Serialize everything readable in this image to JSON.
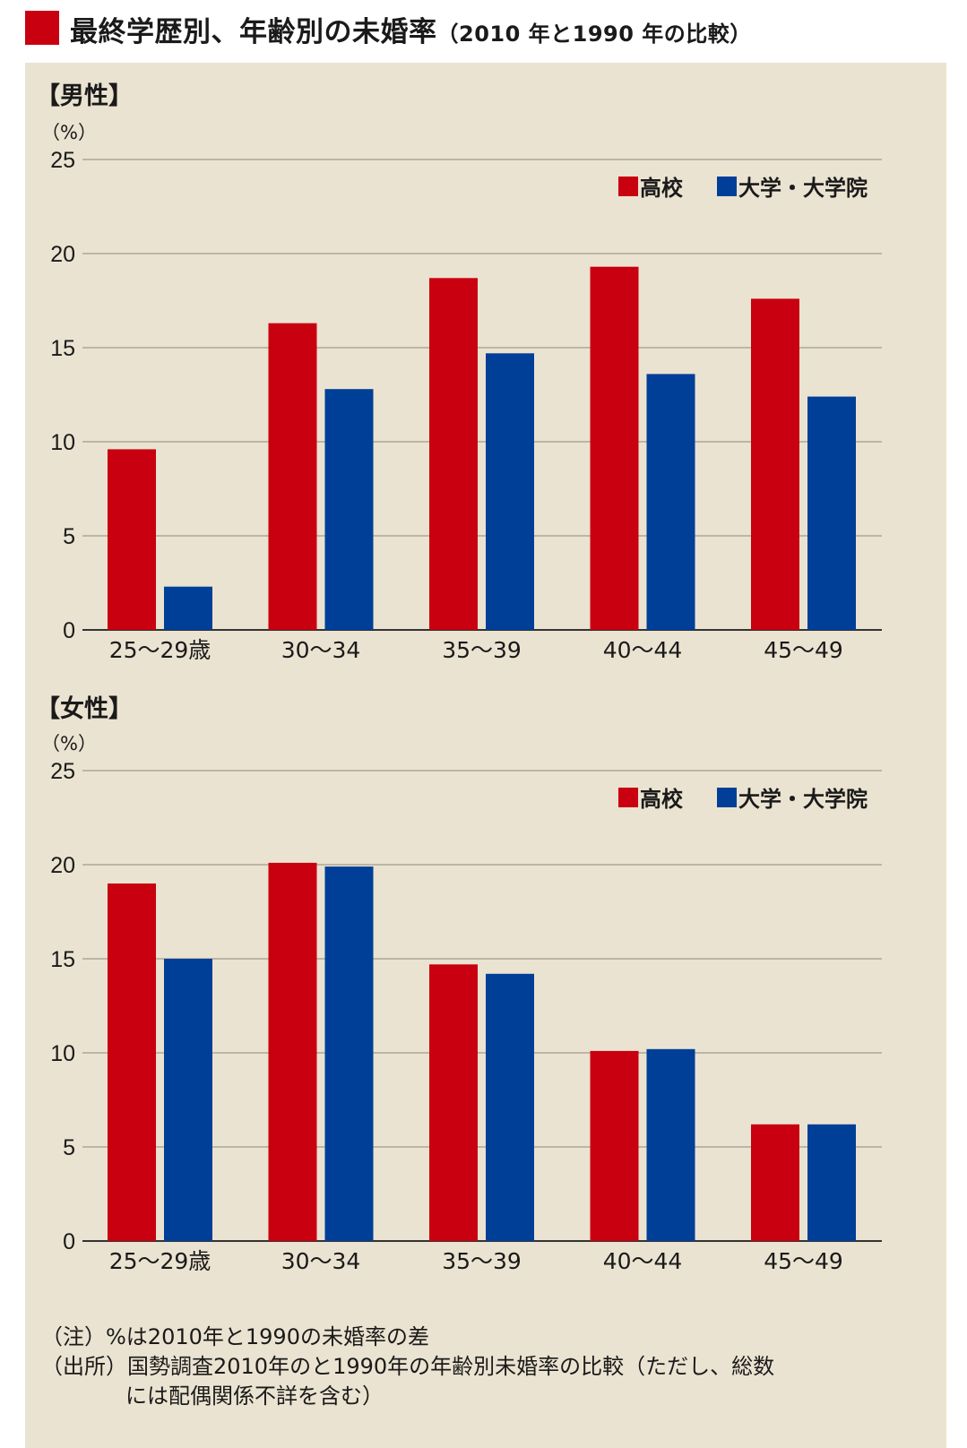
{
  "title": "最終学歴別、年齢別の未婚率",
  "title_sub": "（2010 年と1990 年の比較）",
  "colors": {
    "high_school": "#c8000f",
    "university": "#003f98",
    "panel": "#ebe3d1",
    "title_square": "#c8000f"
  },
  "chart_data": [
    {
      "type": "bar",
      "panel_label": "【男性】",
      "ylabel": "（%）",
      "ylim": [
        0,
        25
      ],
      "yticks": [
        "0",
        "5",
        "10",
        "15",
        "20",
        "25"
      ],
      "categories": [
        "25〜29歳",
        "30〜34",
        "35〜39",
        "40〜44",
        "45〜49"
      ],
      "series": [
        {
          "name": "高校",
          "values": [
            9.6,
            16.3,
            18.7,
            19.3,
            17.6
          ]
        },
        {
          "name": "大学・大学院",
          "values": [
            2.3,
            12.8,
            14.7,
            13.6,
            12.4
          ]
        }
      ],
      "legend": "top-right",
      "grid": true
    },
    {
      "type": "bar",
      "panel_label": "【女性】",
      "ylabel": "（%）",
      "ylim": [
        0,
        25
      ],
      "yticks": [
        "0",
        "5",
        "10",
        "15",
        "20",
        "25"
      ],
      "categories": [
        "25〜29歳",
        "30〜34",
        "35〜39",
        "40〜44",
        "45〜49"
      ],
      "series": [
        {
          "name": "高校",
          "values": [
            19.0,
            20.1,
            14.7,
            10.1,
            6.2
          ]
        },
        {
          "name": "大学・大学院",
          "values": [
            15.0,
            19.9,
            14.2,
            10.2,
            6.2
          ]
        }
      ],
      "legend": "top-right",
      "grid": true
    }
  ],
  "notes": {
    "line1": "（注）%は2010年と1990の未婚率の差",
    "line2": "（出所）国勢調査2010年のと1990年の年齢別未婚率の比較（ただし、総数",
    "line3": "には配偶関係不詳を含む）"
  }
}
